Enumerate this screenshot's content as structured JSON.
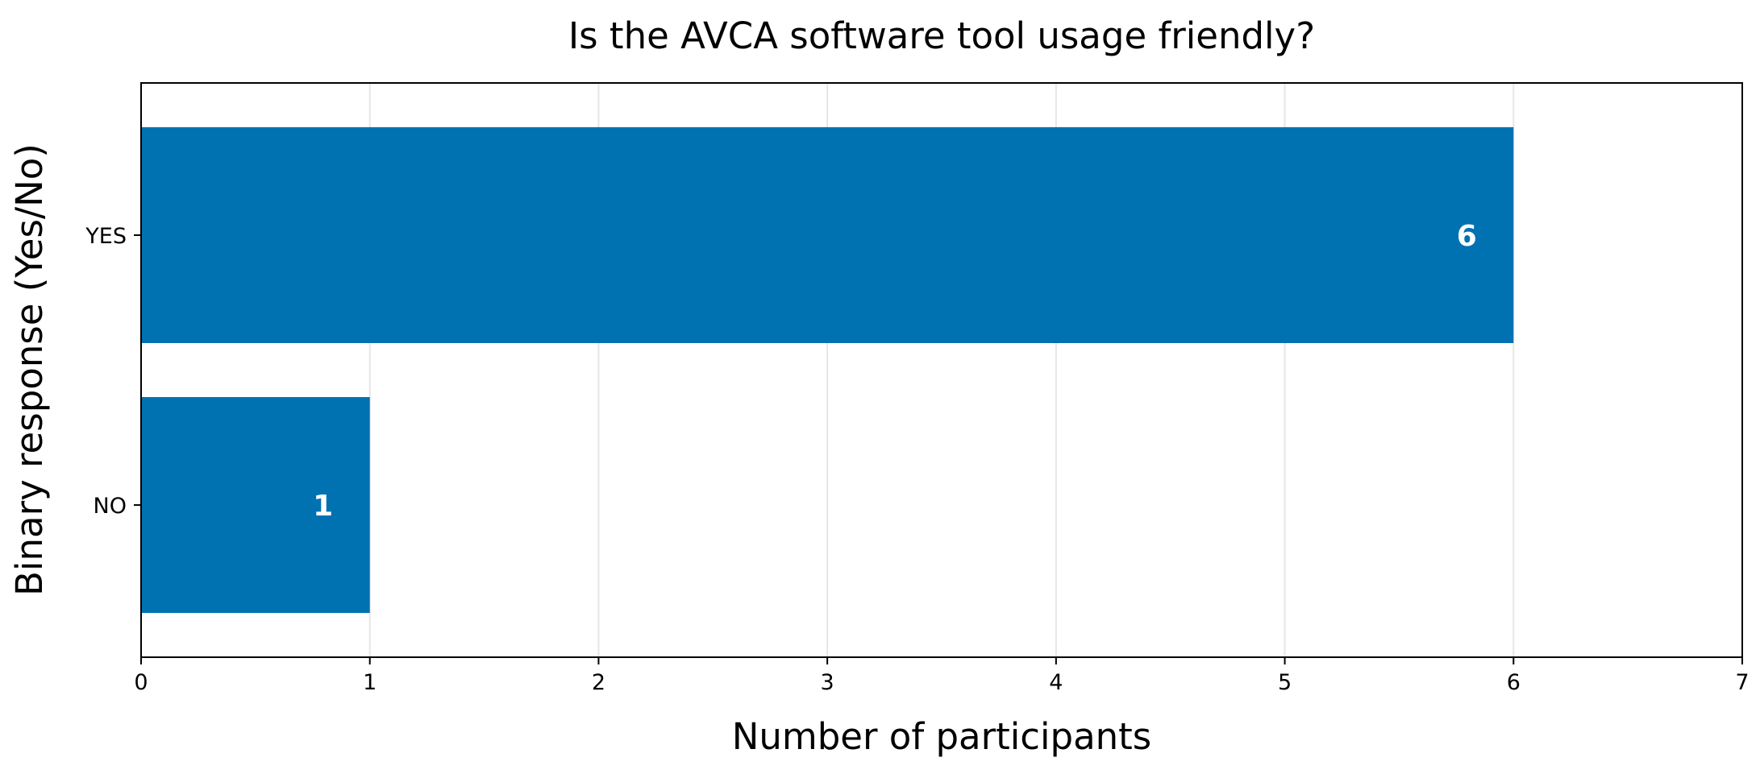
{
  "chart_data": {
    "type": "bar",
    "orientation": "horizontal",
    "title": "Is the AVCA software tool usage friendly?",
    "xlabel": "Number of participants",
    "ylabel": "Binary response (Yes/No)",
    "categories": [
      "YES",
      "NO"
    ],
    "values": [
      6,
      1
    ],
    "data_labels": [
      "6",
      "1"
    ],
    "xlim": [
      0,
      7
    ],
    "xticks": [
      "0",
      "1",
      "2",
      "3",
      "4",
      "5",
      "6",
      "7"
    ],
    "grid": "vertical",
    "legend": "none",
    "colors": {
      "bar": "#0072B2",
      "grid": "#e6e6e6",
      "axis": "#000000",
      "data_label": "#ffffff"
    }
  }
}
